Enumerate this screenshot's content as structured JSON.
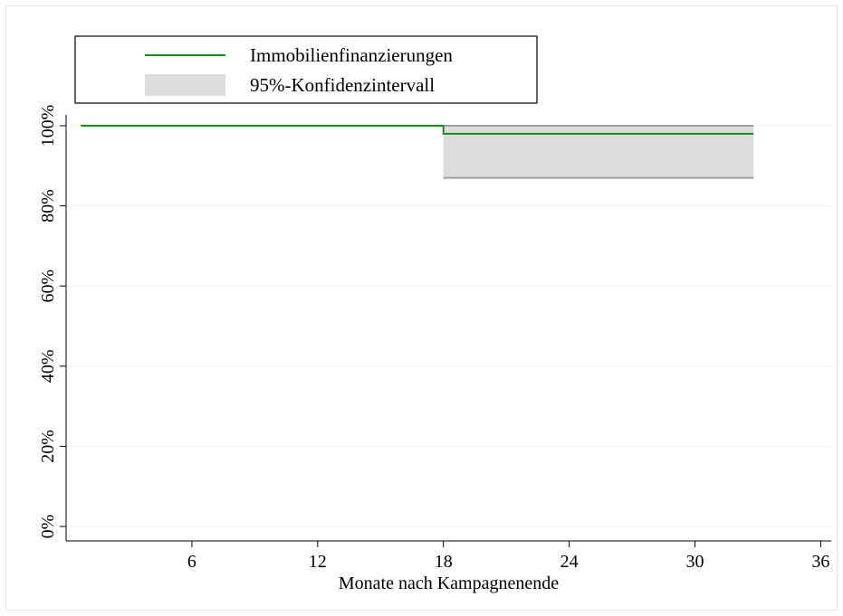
{
  "chart_data": {
    "type": "line",
    "title": "",
    "xlabel": "Monate nach Kampagnenende",
    "ylabel": "",
    "xlim": [
      0,
      36.5
    ],
    "ylim": [
      0,
      100
    ],
    "x_ticks": [
      6,
      12,
      18,
      24,
      30,
      36
    ],
    "y_ticks": [
      0,
      20,
      40,
      60,
      80,
      100
    ],
    "y_tick_labels": [
      "0%",
      "20%",
      "40%",
      "60%",
      "80%",
      "100%"
    ],
    "grid": "horizontal",
    "legend_position": "top-left",
    "series": [
      {
        "name": "Immobilienfinanzierungen",
        "kind": "step-line",
        "color": "#1a8a1a",
        "points": [
          {
            "x": 0.7,
            "y": 100
          },
          {
            "x": 18,
            "y": 100
          },
          {
            "x": 18,
            "y": 98
          },
          {
            "x": 32.8,
            "y": 98
          }
        ]
      },
      {
        "name": "95%-Konfidenzintervall",
        "kind": "band",
        "color": "#dcdcdc",
        "edge_color": "#a0a0a0",
        "x_start": 18,
        "x_end": 32.8,
        "lower": 87,
        "upper": 100
      }
    ]
  }
}
